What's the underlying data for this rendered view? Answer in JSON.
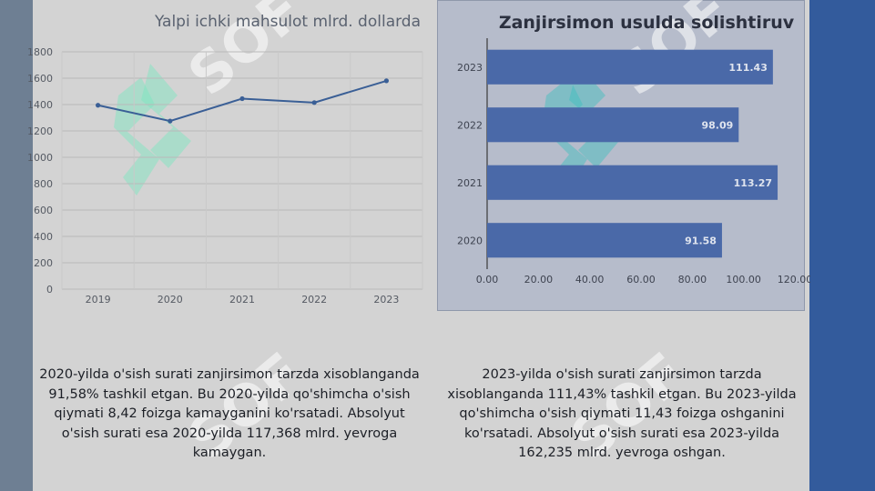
{
  "colors": {
    "line": "#3a5f96",
    "bar": "#4a69a8",
    "bar_label": "#dfe4ee",
    "gridline": "#b9b9b9",
    "axis_text": "#555a63"
  },
  "watermark_text": "SOF",
  "chart_data": [
    {
      "type": "line",
      "title": "Yalpi ichki mahsulot mlrd. dollarda",
      "categories": [
        "2019",
        "2020",
        "2021",
        "2022",
        "2023"
      ],
      "series": [
        {
          "values": [
            1395,
            1275,
            1445,
            1415,
            1580
          ]
        }
      ],
      "ylim": [
        0,
        1800
      ],
      "yticks": [
        "0",
        "200",
        "400",
        "600",
        "800",
        "1000",
        "1200",
        "1400",
        "1600",
        "1800"
      ],
      "grid": true
    },
    {
      "type": "bar",
      "orientation": "horizontal",
      "title": "Zanjirsimon usulda solishtiruv",
      "categories": [
        "2023",
        "2022",
        "2021",
        "2020"
      ],
      "values": [
        111.43,
        98.09,
        113.27,
        91.58
      ],
      "data_labels": [
        "111.43",
        "98.09",
        "113.27",
        "91.58"
      ],
      "xlim": [
        0,
        120
      ],
      "xticks": [
        "0.00",
        "20.00",
        "40.00",
        "60.00",
        "80.00",
        "100.00",
        "120.00"
      ],
      "grid": false
    }
  ],
  "captions": {
    "left": "2020-yilda o'sish surati zanjirsimon tarzda xisoblanganda 91,58% tashkil etgan. Bu 2020-yilda qo'shimcha o'sish qiymati 8,42 foizga kamayganini ko'rsatadi. Absolyut o'sish surati esa 2020-yilda 117,368 mlrd. yevroga kamaygan.",
    "right": "2023-yilda o'sish surati zanjirsimon tarzda xisoblanganda 111,43% tashkil etgan. Bu 2023-yilda qo'shimcha o'sish qiymati 11,43 foizga oshganini ko'rsatadi. Absolyut o'sish surati esa 2023-yilda 162,235 mlrd. yevroga oshgan."
  }
}
